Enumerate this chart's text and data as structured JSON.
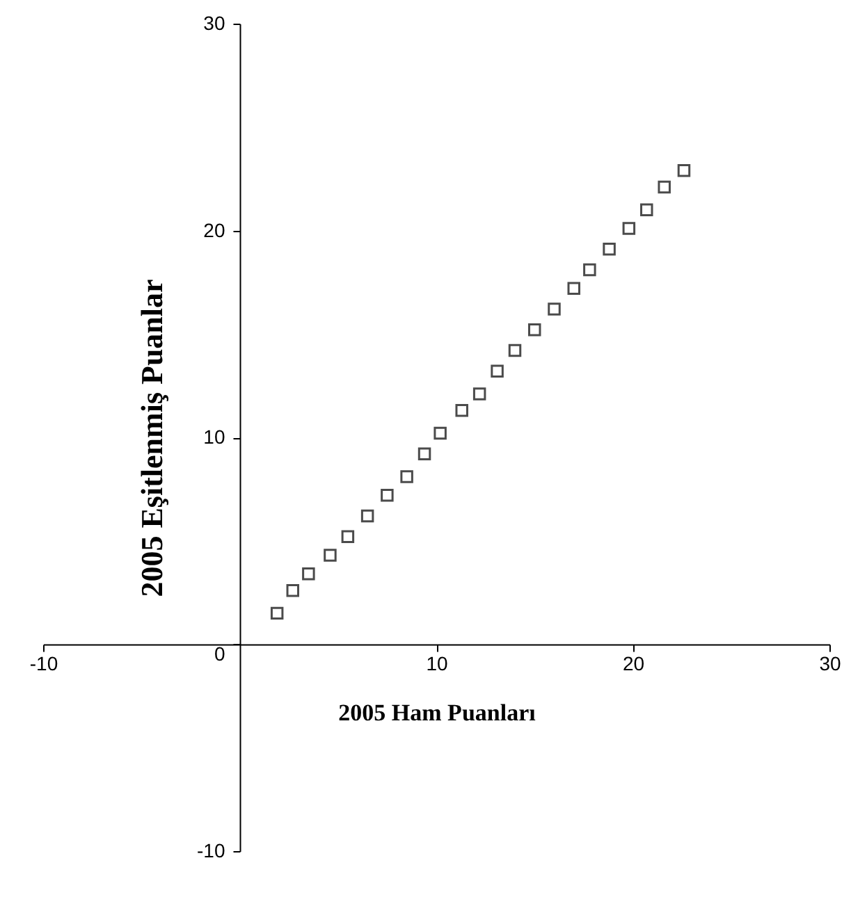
{
  "chart_data": {
    "type": "scatter",
    "xlabel": "2005 Ham Puanları",
    "ylabel": "2005 Eşitlenmiş Puanlar",
    "x": [
      1.9,
      2.7,
      3.5,
      4.6,
      5.5,
      6.5,
      7.5,
      8.5,
      9.4,
      10.2,
      11.3,
      12.2,
      13.1,
      14.0,
      15.0,
      16.0,
      17.0,
      17.8,
      18.8,
      19.8,
      20.7,
      21.6,
      22.6
    ],
    "values": [
      1.5,
      2.6,
      3.4,
      4.3,
      5.2,
      6.2,
      7.2,
      8.1,
      9.2,
      10.2,
      11.3,
      12.1,
      13.2,
      14.2,
      15.2,
      16.2,
      17.2,
      18.1,
      19.1,
      20.1,
      21.0,
      22.1,
      22.9
    ],
    "color": "#000000",
    "marker": "square",
    "xlim": [
      -10,
      30
    ],
    "ylim": [
      -10,
      30
    ],
    "xticks": [
      -10,
      10,
      20,
      30
    ],
    "yticks": [
      -10,
      0,
      10,
      20,
      30
    ],
    "grid": false
  }
}
